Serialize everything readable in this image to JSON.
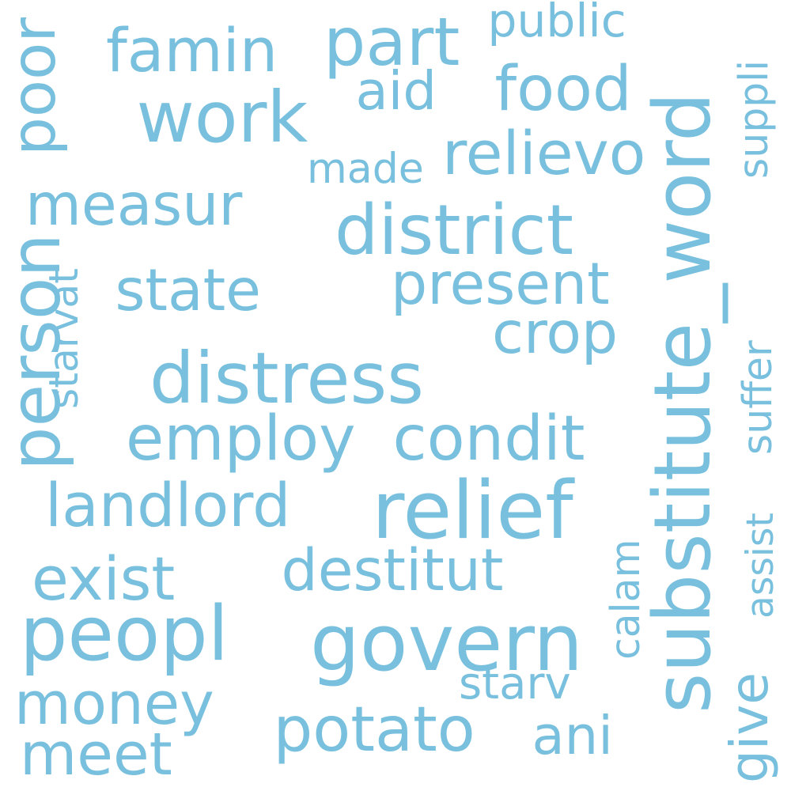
{
  "cloud": {
    "color": "#78c0dd",
    "words": [
      {
        "text": "substitute_word"
      },
      {
        "text": "distress"
      },
      {
        "text": "relief"
      },
      {
        "text": "peopl"
      },
      {
        "text": "govern"
      },
      {
        "text": "district"
      },
      {
        "text": "employ"
      },
      {
        "text": "landlord"
      },
      {
        "text": "food"
      },
      {
        "text": "destitut"
      },
      {
        "text": "work"
      },
      {
        "text": "person"
      },
      {
        "text": "famin"
      },
      {
        "text": "potato"
      },
      {
        "text": "present"
      },
      {
        "text": "state"
      },
      {
        "text": "condit"
      },
      {
        "text": "relievo"
      },
      {
        "text": "measur"
      },
      {
        "text": "poor"
      },
      {
        "text": "exist"
      },
      {
        "text": "money"
      },
      {
        "text": "part"
      },
      {
        "text": "aid"
      },
      {
        "text": "crop"
      },
      {
        "text": "meet"
      },
      {
        "text": "ani"
      },
      {
        "text": "public"
      },
      {
        "text": "made"
      },
      {
        "text": "starvat"
      },
      {
        "text": "suffer"
      },
      {
        "text": "suppli"
      },
      {
        "text": "calam"
      },
      {
        "text": "starv"
      },
      {
        "text": "assist"
      },
      {
        "text": "give"
      }
    ]
  }
}
